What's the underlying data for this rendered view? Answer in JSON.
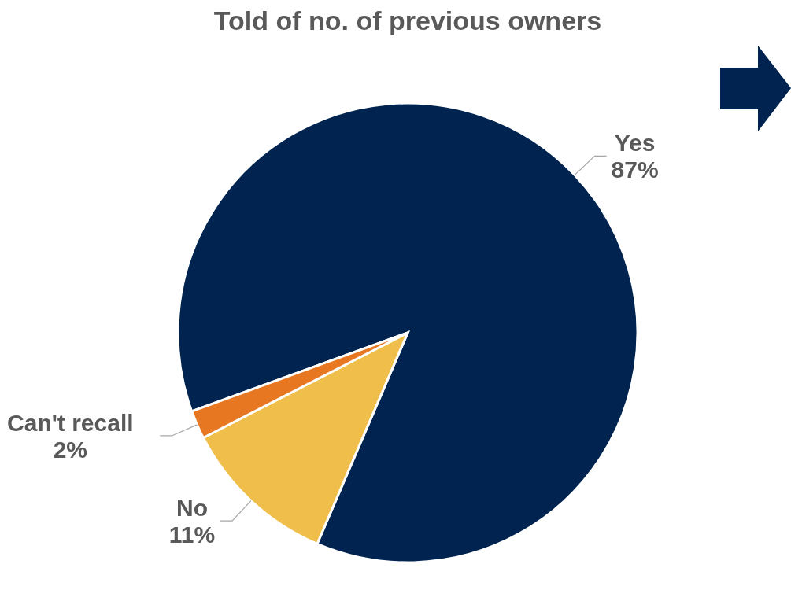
{
  "chart_data": {
    "type": "pie",
    "title": "Told of no. of previous owners",
    "categories": [
      "Yes",
      "No",
      "Can't recall"
    ],
    "values": [
      87,
      11,
      2
    ],
    "colors": [
      "#00244f",
      "#f0be4a",
      "#e87722"
    ],
    "value_labels": [
      "87%",
      "11%",
      "2%"
    ],
    "legend": false
  }
}
